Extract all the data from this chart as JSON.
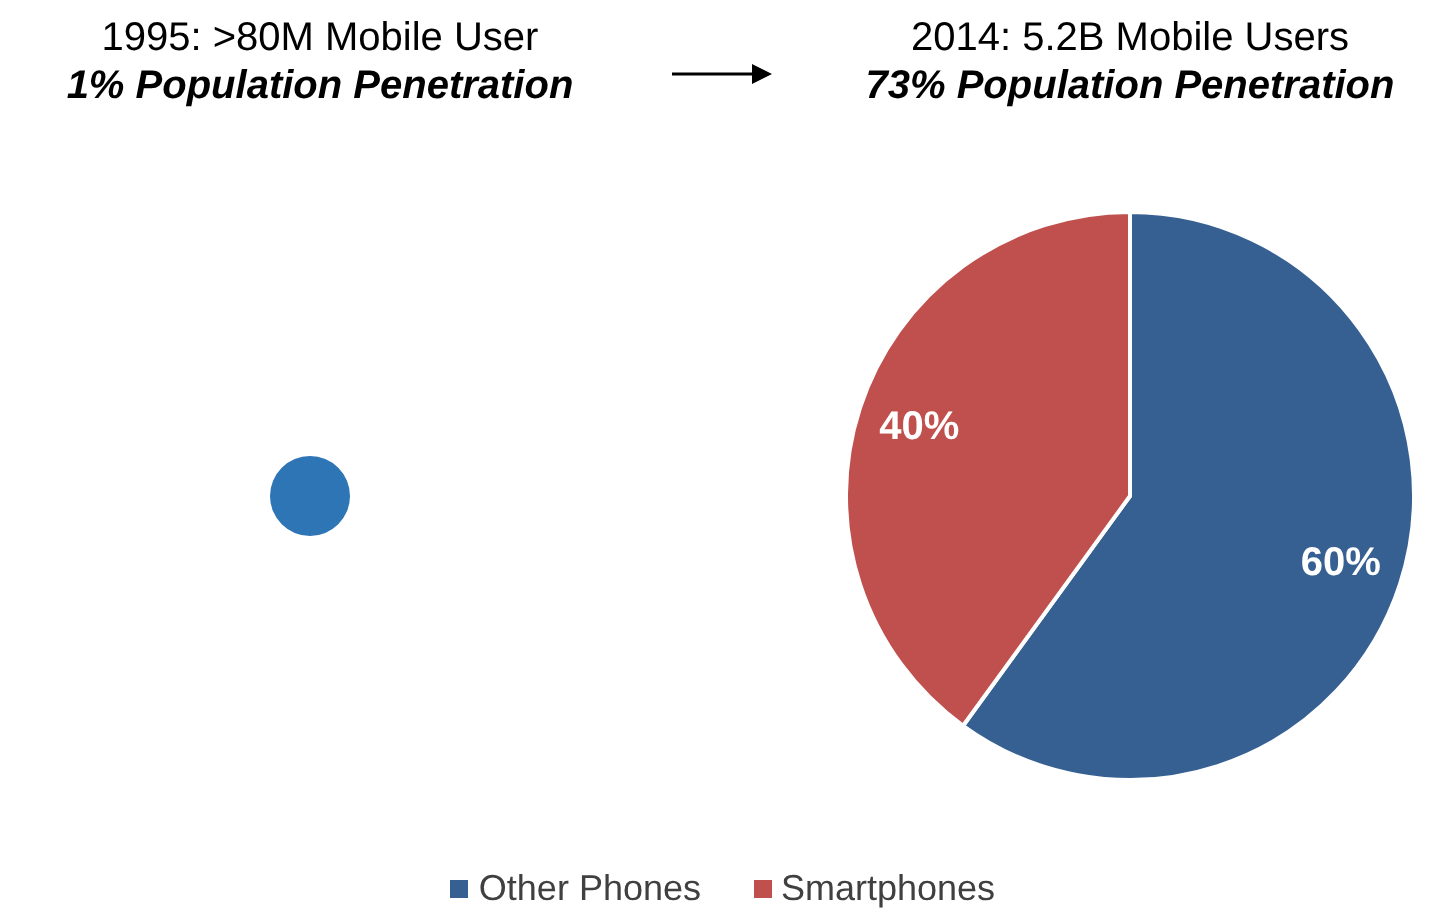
{
  "chart_data": [
    {
      "type": "pie",
      "title": "1995: >80M Mobile User",
      "subtitle": "1% Population Penetration",
      "categories": [
        null
      ],
      "values": [
        100
      ],
      "colors": [
        "#2e75b6"
      ]
    },
    {
      "type": "pie",
      "title": "2014: 5.2B Mobile Users",
      "subtitle": "73% Population Penetration",
      "categories": [
        "Other Phones",
        "Smartphones"
      ],
      "values": [
        60,
        40
      ],
      "colors": [
        "#376092",
        "#c0504d"
      ],
      "value_labels": [
        "60%",
        "40%"
      ],
      "legend": "bottom"
    }
  ]
}
